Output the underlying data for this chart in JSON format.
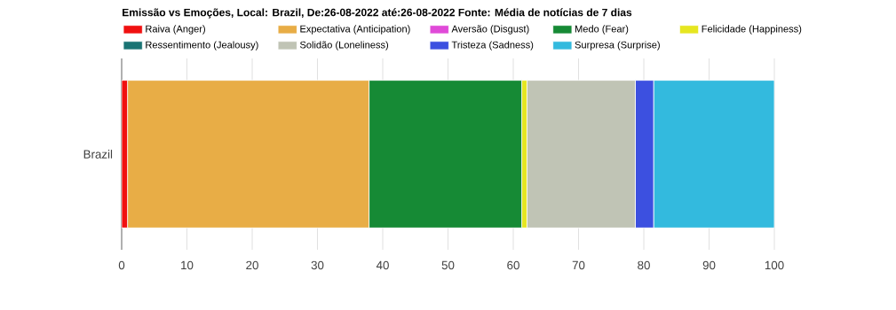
{
  "chart_data": {
    "type": "bar",
    "orientation": "horizontal",
    "stacked": true,
    "title": "Emissão vs Emoções, Local: Brazil, De:26-08-2022 até:26-08-2022 Fonte: Média de notícias de 7 dias",
    "categories": [
      "Brazil"
    ],
    "series": [
      {
        "name": "Raiva (Anger)",
        "color": "#f01010",
        "values": [
          0.9
        ]
      },
      {
        "name": "Expectativa (Anticipation)",
        "color": "#e8ad46",
        "values": [
          37.0
        ]
      },
      {
        "name": "Aversão (Disgust)",
        "color": "#e04ad8",
        "values": [
          0
        ]
      },
      {
        "name": "Medo (Fear)",
        "color": "#168a35",
        "values": [
          23.4
        ]
      },
      {
        "name": "Felicidade (Happiness)",
        "color": "#e6e620",
        "values": [
          0.8
        ]
      },
      {
        "name": "Ressentimento (Jealousy)",
        "color": "#1a7474",
        "values": [
          0
        ]
      },
      {
        "name": "Solidão (Loneliness)",
        "color": "#c0c4b5",
        "values": [
          16.6
        ]
      },
      {
        "name": "Tristeza (Sadness)",
        "color": "#3c50e0",
        "values": [
          2.8
        ]
      },
      {
        "name": "Surpresa (Surprise)",
        "color": "#33bade",
        "values": [
          18.5
        ]
      }
    ],
    "xlim": [
      0,
      100
    ],
    "xticks": [
      0,
      10,
      20,
      30,
      40,
      50,
      60,
      70,
      80,
      90,
      100
    ],
    "grid": "x",
    "legend": "top"
  }
}
